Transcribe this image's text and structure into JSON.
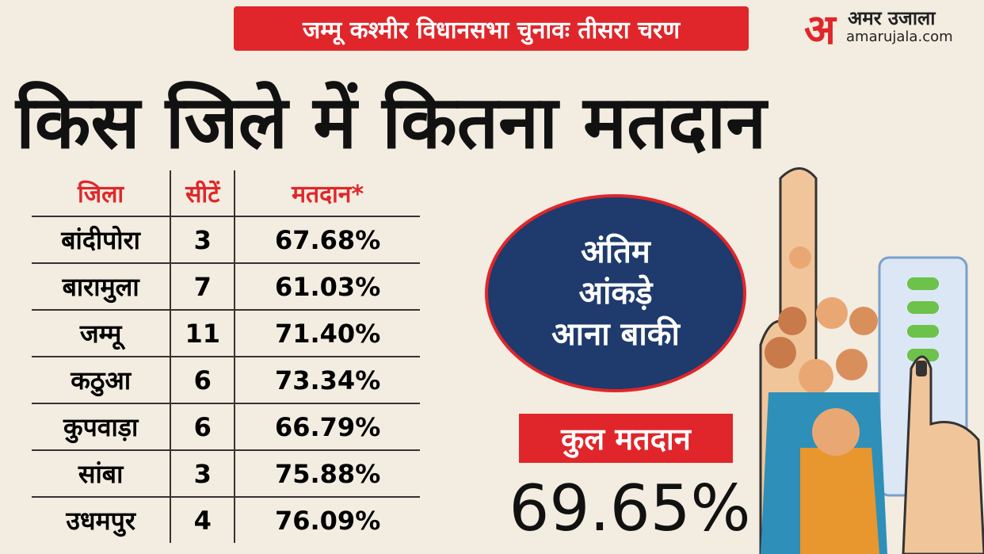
{
  "header": {
    "tag": "जम्मू कश्मीर विधानसभा चुनावः  तीसरा चरण",
    "title": "किस जिले में कितना मतदान"
  },
  "brand": {
    "logo": "अ",
    "name": "अमर उजाला",
    "url": "amarujala.com"
  },
  "table": {
    "headers": [
      "जिला",
      "सीटें",
      "मतदान*"
    ],
    "rows": [
      [
        "बांदीपोरा",
        "3",
        "67.68%"
      ],
      [
        "बारामुला",
        "7",
        "61.03%"
      ],
      [
        "जम्मू",
        "11",
        "71.40%"
      ],
      [
        "कठुआ",
        "6",
        "73.34%"
      ],
      [
        "कुपवाड़ा",
        "6",
        "66.79%"
      ],
      [
        "सांबा",
        "3",
        "75.88%"
      ],
      [
        "उधमपुर",
        "4",
        "76.09%"
      ]
    ]
  },
  "note": [
    "अंतिम",
    "आंकड़े",
    "आना बाकी"
  ],
  "total": {
    "label": "कुल मतदान",
    "value": "69.65%"
  }
}
